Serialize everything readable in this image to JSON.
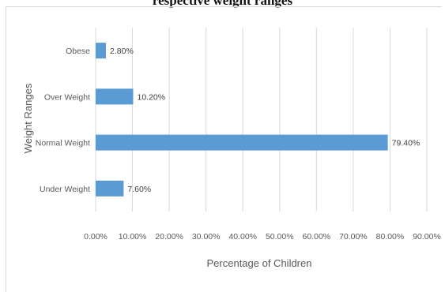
{
  "chart_data": {
    "type": "bar",
    "orientation": "horizontal",
    "title": "respective weight ranges",
    "categories": [
      "Under Weight",
      "Normal Weight",
      "Over Weight",
      "Obese"
    ],
    "values": [
      7.6,
      79.4,
      10.2,
      2.8
    ],
    "data_labels": [
      "7.60%",
      "79.40%",
      "10.20%",
      "2.80%"
    ],
    "xlabel": "Percentage of Children",
    "ylabel": "Weight Ranges",
    "xlim": [
      0,
      90
    ],
    "xticks": [
      "0.00%",
      "10.00%",
      "20.00%",
      "30.00%",
      "40.00%",
      "50.00%",
      "60.00%",
      "70.00%",
      "80.00%",
      "90.00%"
    ],
    "grid": "vertical",
    "legend": "none",
    "bar_color": "#5b9bd5"
  }
}
